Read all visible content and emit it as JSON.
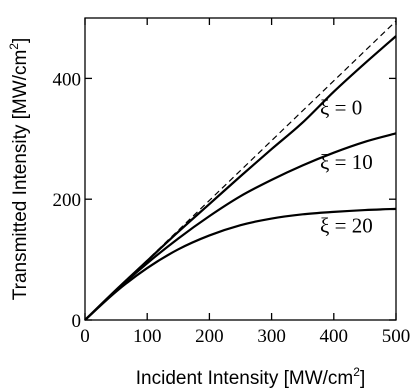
{
  "chart_data": {
    "type": "line",
    "xlabel": {
      "prefix": "Incident Intensity [MW/cm",
      "sup": "2",
      "suffix": "]"
    },
    "ylabel": {
      "prefix": "Transmitted Intensity [MW/cm",
      "sup": "2",
      "suffix": "]"
    },
    "xlim": [
      0,
      500
    ],
    "ylim": [
      0,
      500
    ],
    "xticks": [
      0,
      100,
      200,
      300,
      400,
      500
    ],
    "yticks": [
      0,
      200,
      400
    ],
    "grid": false,
    "series": [
      {
        "label": "ξ = 0",
        "style": "solid",
        "x": [
          0,
          50,
          100,
          150,
          200,
          250,
          300,
          350,
          400,
          450,
          500
        ],
        "y": [
          0,
          50,
          98,
          146,
          192,
          238,
          283,
          327,
          378,
          425,
          470
        ]
      },
      {
        "label": "ξ = 10",
        "style": "solid",
        "x": [
          0,
          50,
          100,
          150,
          200,
          250,
          300,
          350,
          400,
          450,
          500
        ],
        "y": [
          0,
          49,
          94,
          135,
          172,
          205,
          232,
          256,
          277,
          295,
          309
        ]
      },
      {
        "label": "ξ = 20",
        "style": "solid",
        "x": [
          0,
          50,
          100,
          150,
          200,
          250,
          300,
          350,
          400,
          450,
          500
        ],
        "y": [
          0,
          47,
          86,
          117,
          140,
          157,
          168,
          175,
          179,
          182,
          184
        ]
      },
      {
        "label": "",
        "style": "dashed",
        "x": [
          0,
          500
        ],
        "y": [
          0,
          495
        ]
      }
    ]
  }
}
